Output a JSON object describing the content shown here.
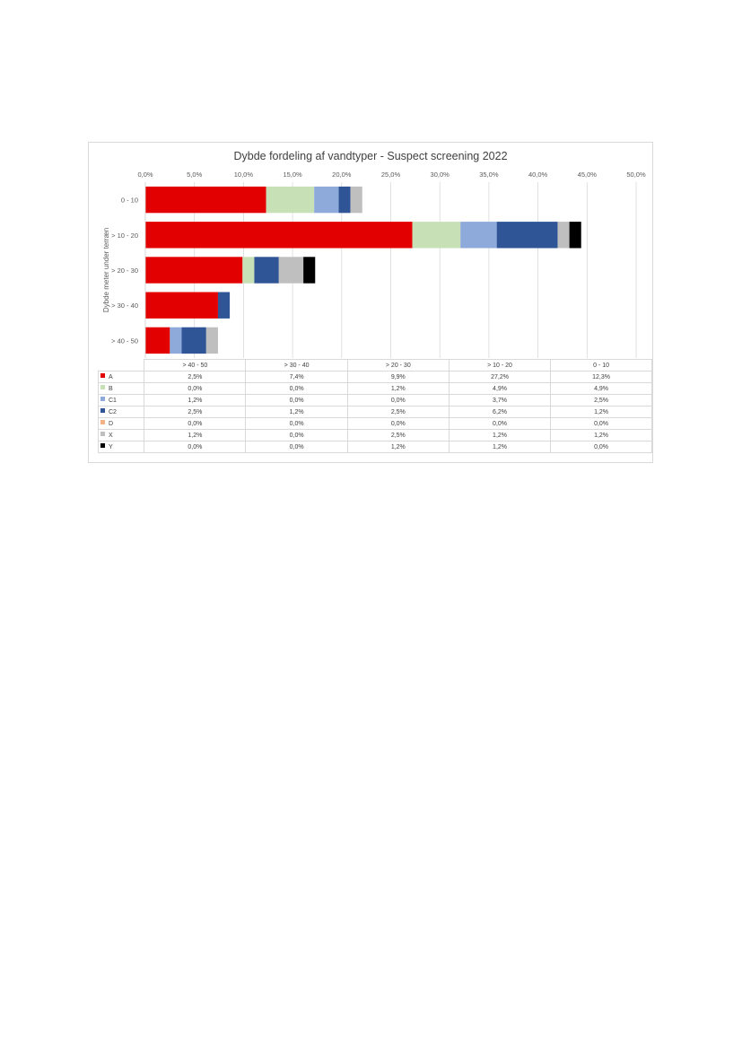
{
  "chart_data": {
    "type": "bar",
    "orientation": "horizontal",
    "stacked": true,
    "title": "Dybde fordeling af vandtyper - Suspect screening 2022",
    "ylabel": "Dybde meter under terræn",
    "xlabel": "",
    "xlim": [
      0,
      50
    ],
    "x_tick_labels": [
      "0,0%",
      "5,0%",
      "10,0%",
      "15,0%",
      "20,0%",
      "25,0%",
      "30,0%",
      "35,0%",
      "40,0%",
      "45,0%",
      "50,0%"
    ],
    "grid": true,
    "legend": "data-table",
    "categories": [
      "> 40 - 50",
      "> 30 - 40",
      "> 20 - 30",
      "> 10 - 20",
      "0 - 10"
    ],
    "series": [
      {
        "name": "A",
        "color": "#e30000",
        "values": [
          2.5,
          7.4,
          9.9,
          27.2,
          12.3
        ],
        "labels": [
          "2,5%",
          "7,4%",
          "9,9%",
          "27,2%",
          "12,3%"
        ]
      },
      {
        "name": "B",
        "color": "#c8e0b6",
        "values": [
          0.0,
          0.0,
          1.2,
          4.9,
          4.9
        ],
        "labels": [
          "0,0%",
          "0,0%",
          "1,2%",
          "4,9%",
          "4,9%"
        ]
      },
      {
        "name": "C1",
        "color": "#8eaadb",
        "values": [
          1.2,
          0.0,
          0.0,
          3.7,
          2.5
        ],
        "labels": [
          "1,2%",
          "0,0%",
          "0,0%",
          "3,7%",
          "2,5%"
        ]
      },
      {
        "name": "C2",
        "color": "#2f5597",
        "values": [
          2.5,
          1.2,
          2.5,
          6.2,
          1.2
        ],
        "labels": [
          "2,5%",
          "1,2%",
          "2,5%",
          "6,2%",
          "1,2%"
        ]
      },
      {
        "name": "D",
        "color": "#f4b183",
        "values": [
          0.0,
          0.0,
          0.0,
          0.0,
          0.0
        ],
        "labels": [
          "0,0%",
          "0,0%",
          "0,0%",
          "0,0%",
          "0,0%"
        ]
      },
      {
        "name": "X",
        "color": "#bfbfbf",
        "values": [
          1.2,
          0.0,
          2.5,
          1.2,
          1.2
        ],
        "labels": [
          "1,2%",
          "0,0%",
          "2,5%",
          "1,2%",
          "1,2%"
        ]
      },
      {
        "name": "Y",
        "color": "#000000",
        "values": [
          0.0,
          0.0,
          1.2,
          1.2,
          0.0
        ],
        "labels": [
          "0,0%",
          "0,0%",
          "1,2%",
          "1,2%",
          "0,0%"
        ]
      }
    ]
  }
}
